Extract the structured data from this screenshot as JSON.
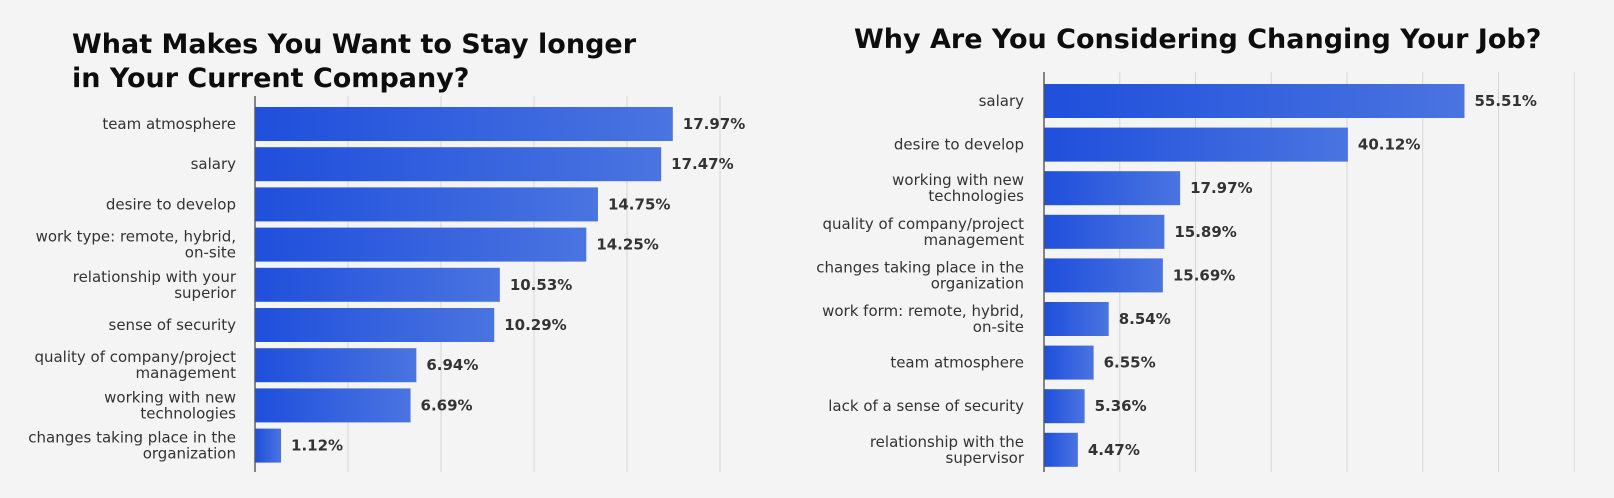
{
  "chart_data": [
    {
      "type": "bar",
      "orientation": "horizontal",
      "title": [
        "What Makes You Want to Stay longer",
        "in Your Current Company?"
      ],
      "categories": [
        "team atmosphere",
        "salary",
        "desire to develop",
        "work type: remote, hybrid, on-site",
        "relationship with your superior",
        "sense of security",
        "quality of company/project management",
        "working with new technologies",
        "changes taking place in the organization"
      ],
      "category_lines": [
        [
          "team atmosphere"
        ],
        [
          "salary"
        ],
        [
          "desire to develop"
        ],
        [
          "work type: remote, hybrid,",
          "on-site"
        ],
        [
          "relationship with your",
          "superior"
        ],
        [
          "sense of security"
        ],
        [
          "quality of company/project",
          "management"
        ],
        [
          "working with new",
          "technologies"
        ],
        [
          "changes taking place in the",
          "organization"
        ]
      ],
      "values": [
        17.97,
        17.47,
        14.75,
        14.25,
        10.53,
        10.29,
        6.94,
        6.69,
        1.12
      ],
      "value_labels": [
        "17.97%",
        "17.47%",
        "14.75%",
        "14.25%",
        "10.53%",
        "10.29%",
        "6.94%",
        "6.69%",
        "1.12%"
      ],
      "xlim": [
        0,
        20
      ],
      "grid_step": 4,
      "grid": true,
      "legend": "none",
      "bar_color_start": "#1f4fdc",
      "bar_color_end": "#4a74e0"
    },
    {
      "type": "bar",
      "orientation": "horizontal",
      "title": [
        "Why Are You Considering Changing Your Job?"
      ],
      "categories": [
        "salary",
        "desire to develop",
        "working with new technologies",
        "quality of company/project management",
        "changes taking place in the organization",
        "work form: remote, hybrid, on-site",
        "team atmosphere",
        "lack of a sense of security",
        "relationship with the supervisor"
      ],
      "category_lines": [
        [
          "salary"
        ],
        [
          "desire to develop"
        ],
        [
          "working with new",
          "technologies"
        ],
        [
          "quality of company/project",
          "management"
        ],
        [
          "changes taking place in the",
          "organization"
        ],
        [
          "work form: remote, hybrid,",
          "on-site"
        ],
        [
          "team atmosphere"
        ],
        [
          "lack of a sense of security"
        ],
        [
          "relationship with the",
          "supervisor"
        ]
      ],
      "values": [
        55.51,
        40.12,
        17.97,
        15.89,
        15.69,
        8.54,
        6.55,
        5.36,
        4.47
      ],
      "value_labels": [
        "55.51%",
        "40.12%",
        "17.97%",
        "15.89%",
        "15.69%",
        "8.54%",
        "6.55%",
        "5.36%",
        "4.47%"
      ],
      "xlim": [
        0,
        70
      ],
      "grid_step": 10,
      "grid": true,
      "legend": "none",
      "bar_color_start": "#1f4fdc",
      "bar_color_end": "#4a74e0"
    }
  ]
}
